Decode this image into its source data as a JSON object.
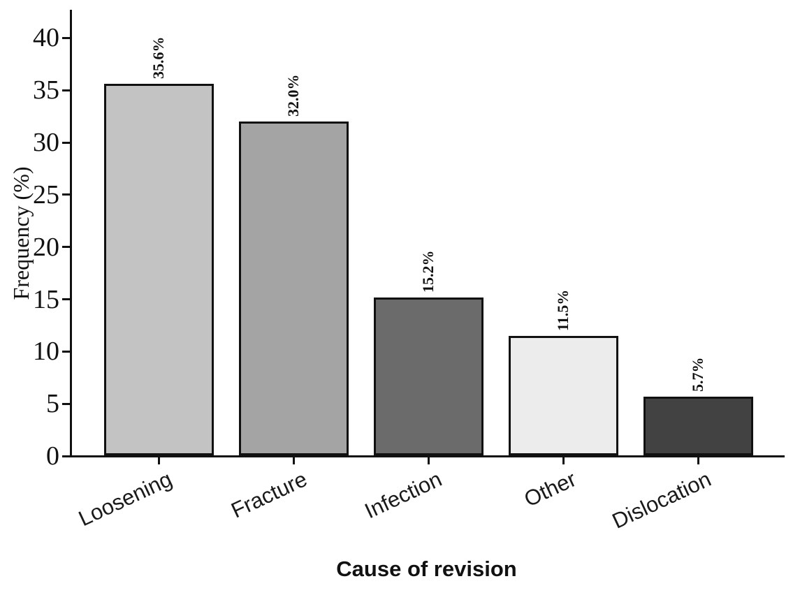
{
  "figure": {
    "background_color": "#ffffff",
    "axis_color": "#111111",
    "xlabel": "Cause of revision",
    "ylabel": "Frequency (%)"
  },
  "chart_data": {
    "type": "bar",
    "title": "",
    "xlabel": "Cause of revision",
    "ylabel": "Frequency (%)",
    "categories": [
      "Loosening",
      "Fracture",
      "Infection",
      "Other",
      "Dislocation"
    ],
    "values": [
      35.6,
      32.0,
      15.2,
      11.5,
      5.7
    ],
    "value_labels": [
      "35.6%",
      "32.0%",
      "15.2%",
      "11.5%",
      "5.7%"
    ],
    "bar_colors": [
      "#c3c3c3",
      "#a4a4a4",
      "#6b6b6b",
      "#ececec",
      "#424242"
    ],
    "bar_edge_color": "#111111",
    "yticks": [
      0,
      5,
      10,
      15,
      20,
      25,
      30,
      35,
      40
    ],
    "ylim": [
      0,
      42.7
    ],
    "grid": false,
    "legend_position": "none",
    "value_label_rotation_deg": 90,
    "xtick_label_rotation_deg": 25
  }
}
